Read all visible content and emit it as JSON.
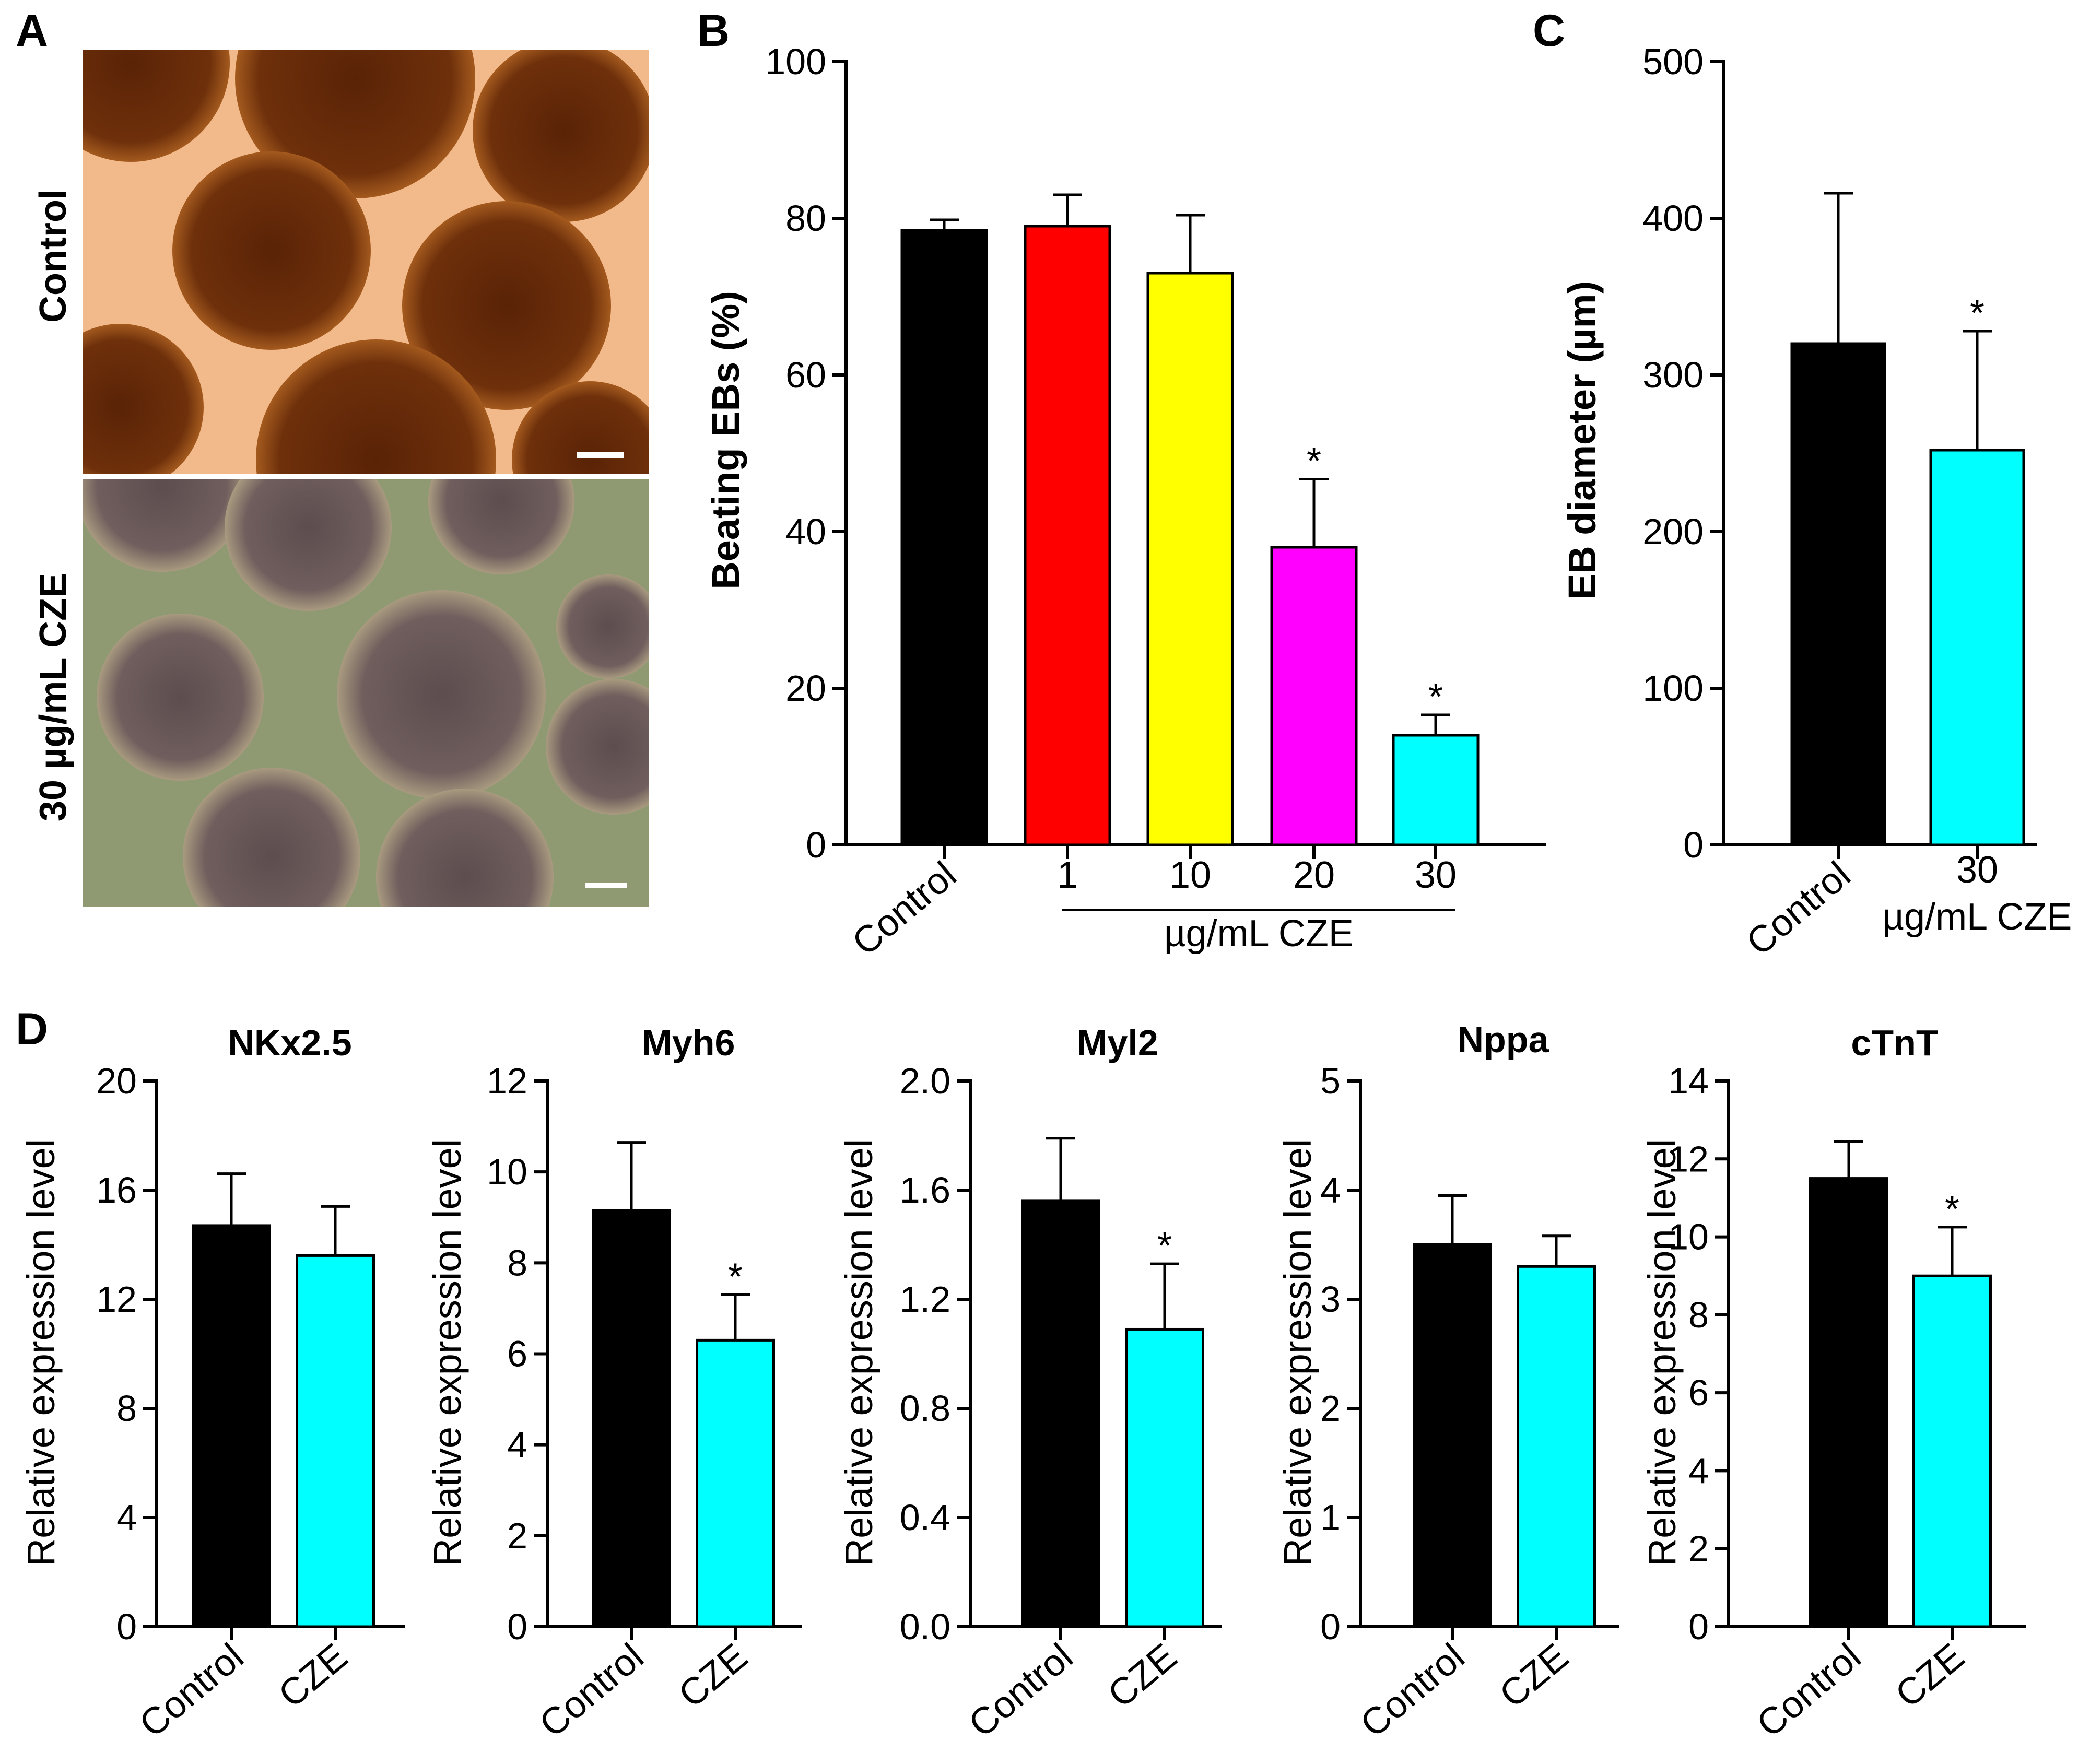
{
  "panel_labels": {
    "a": "A",
    "b": "B",
    "c": "C",
    "d": "D"
  },
  "panel_a": {
    "row_labels": [
      "Control",
      "30 µg/mL CZE"
    ],
    "colors": {
      "control_bg": "#f2b98a",
      "control_sphere": "#6a2e0a",
      "cze_bg": "#8f9a72",
      "cze_sphere": "#6e5e5c"
    }
  },
  "colors": {
    "black": "#000000",
    "red": "#ff0000",
    "yellow": "#ffff00",
    "magenta": "#ff00ff",
    "cyan": "#00ffff"
  },
  "chart_data": [
    {
      "id": "B",
      "type": "bar",
      "title": "",
      "categories": [
        "Control",
        "1",
        "10",
        "20",
        "30"
      ],
      "values": [
        78.5,
        79,
        73,
        38,
        14
      ],
      "errors": [
        1.3,
        4,
        7.4,
        8.7,
        2.6
      ],
      "significant": [
        false,
        false,
        false,
        true,
        true
      ],
      "bar_colors": [
        "#000000",
        "#ff0000",
        "#ffff00",
        "#ff00ff",
        "#00ffff"
      ],
      "ylabel": "Beating EBs (%)",
      "ylim": [
        0,
        100
      ],
      "yticks": [
        "0",
        "20",
        "40",
        "60",
        "80",
        "100"
      ],
      "group_label": "µg/mL CZE",
      "star": "*"
    },
    {
      "id": "C",
      "type": "bar",
      "title": "",
      "categories": [
        "Control",
        "30"
      ],
      "values": [
        320,
        252
      ],
      "errors": [
        96,
        76
      ],
      "significant": [
        false,
        true
      ],
      "bar_colors": [
        "#000000",
        "#00ffff"
      ],
      "ylabel": "EB diameter (µm)",
      "ylim": [
        0,
        500
      ],
      "yticks": [
        "0",
        "100",
        "200",
        "300",
        "400",
        "500"
      ],
      "group_label": "µg/mL CZE",
      "star": "*"
    },
    {
      "id": "D1",
      "type": "bar",
      "title": "NKx2.5",
      "categories": [
        "Control",
        "CZE"
      ],
      "values": [
        14.7,
        13.6
      ],
      "errors": [
        1.9,
        1.8
      ],
      "significant": [
        false,
        false
      ],
      "bar_colors": [
        "#000000",
        "#00ffff"
      ],
      "ylabel": "Relative expression level",
      "ylim": [
        0,
        20
      ],
      "yticks": [
        "0",
        "4",
        "8",
        "12",
        "16",
        "20"
      ]
    },
    {
      "id": "D2",
      "type": "bar",
      "title": "Myh6",
      "categories": [
        "Control",
        "CZE"
      ],
      "values": [
        9.15,
        6.3
      ],
      "errors": [
        1.5,
        1.0
      ],
      "significant": [
        false,
        true
      ],
      "bar_colors": [
        "#000000",
        "#00ffff"
      ],
      "ylabel": "Relative expression level",
      "ylim": [
        0,
        12
      ],
      "yticks": [
        "0",
        "2",
        "4",
        "6",
        "8",
        "10",
        "12"
      ],
      "star": "*"
    },
    {
      "id": "D3",
      "type": "bar",
      "title": "Myl2",
      "categories": [
        "Control",
        "CZE"
      ],
      "values": [
        1.56,
        1.09
      ],
      "errors": [
        0.23,
        0.24
      ],
      "significant": [
        false,
        true
      ],
      "bar_colors": [
        "#000000",
        "#00ffff"
      ],
      "ylabel": "Relative expression level",
      "ylim": [
        0,
        2
      ],
      "yticks": [
        "0.0",
        "0.4",
        "0.8",
        "1.2",
        "1.6",
        "2.0"
      ],
      "star": "*"
    },
    {
      "id": "D4",
      "type": "bar",
      "title": "Nppa",
      "categories": [
        "Control",
        "CZE"
      ],
      "values": [
        3.5,
        3.3
      ],
      "errors": [
        0.45,
        0.28
      ],
      "significant": [
        false,
        false
      ],
      "bar_colors": [
        "#000000",
        "#00ffff"
      ],
      "ylabel": "Relative expression level",
      "ylim": [
        0,
        5
      ],
      "yticks": [
        "0",
        "1",
        "2",
        "3",
        "4",
        "5"
      ]
    },
    {
      "id": "D5",
      "type": "bar",
      "title": "cTnT",
      "categories": [
        "Control",
        "CZE"
      ],
      "values": [
        11.5,
        9.0
      ],
      "errors": [
        0.95,
        1.25
      ],
      "significant": [
        false,
        true
      ],
      "bar_colors": [
        "#000000",
        "#00ffff"
      ],
      "ylabel": "Relative expression level",
      "ylim": [
        0,
        14
      ],
      "yticks": [
        "0",
        "2",
        "4",
        "6",
        "8",
        "10",
        "12",
        "14"
      ],
      "star": "*"
    }
  ]
}
